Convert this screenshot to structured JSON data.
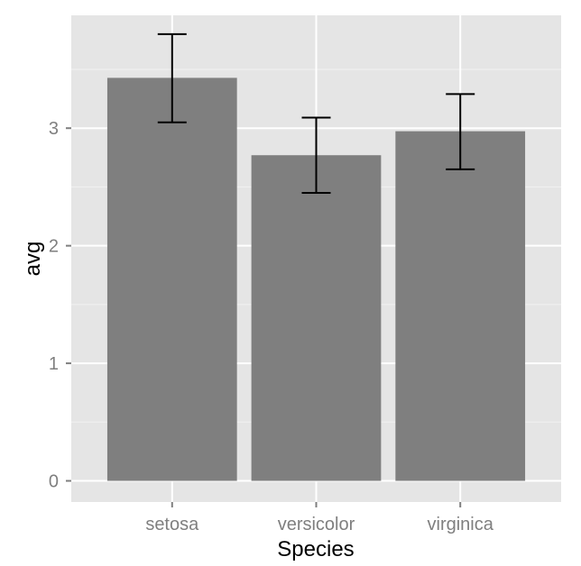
{
  "chart_data": {
    "type": "bar",
    "title": "",
    "xlabel": "Species",
    "ylabel": "avg",
    "categories": [
      "setosa",
      "versicolor",
      "virginica"
    ],
    "values": [
      3.428,
      2.77,
      2.974
    ],
    "error_bars": [
      {
        "low": 3.05,
        "high": 3.8
      },
      {
        "low": 2.45,
        "high": 3.09
      },
      {
        "low": 2.65,
        "high": 3.29
      }
    ],
    "ylim": [
      -0.18,
      3.96
    ],
    "yticks": [
      0,
      1,
      2,
      3
    ],
    "ytick_labels": [
      "0",
      "1",
      "2",
      "3"
    ],
    "grid": true,
    "colors": {
      "panel": "#e5e5e5",
      "grid_major": "#ffffff",
      "grid_minor": "#f2f2f2",
      "bar": "#7f7f7f",
      "errorbar": "#000000",
      "tick": "#7f7f7f"
    }
  }
}
